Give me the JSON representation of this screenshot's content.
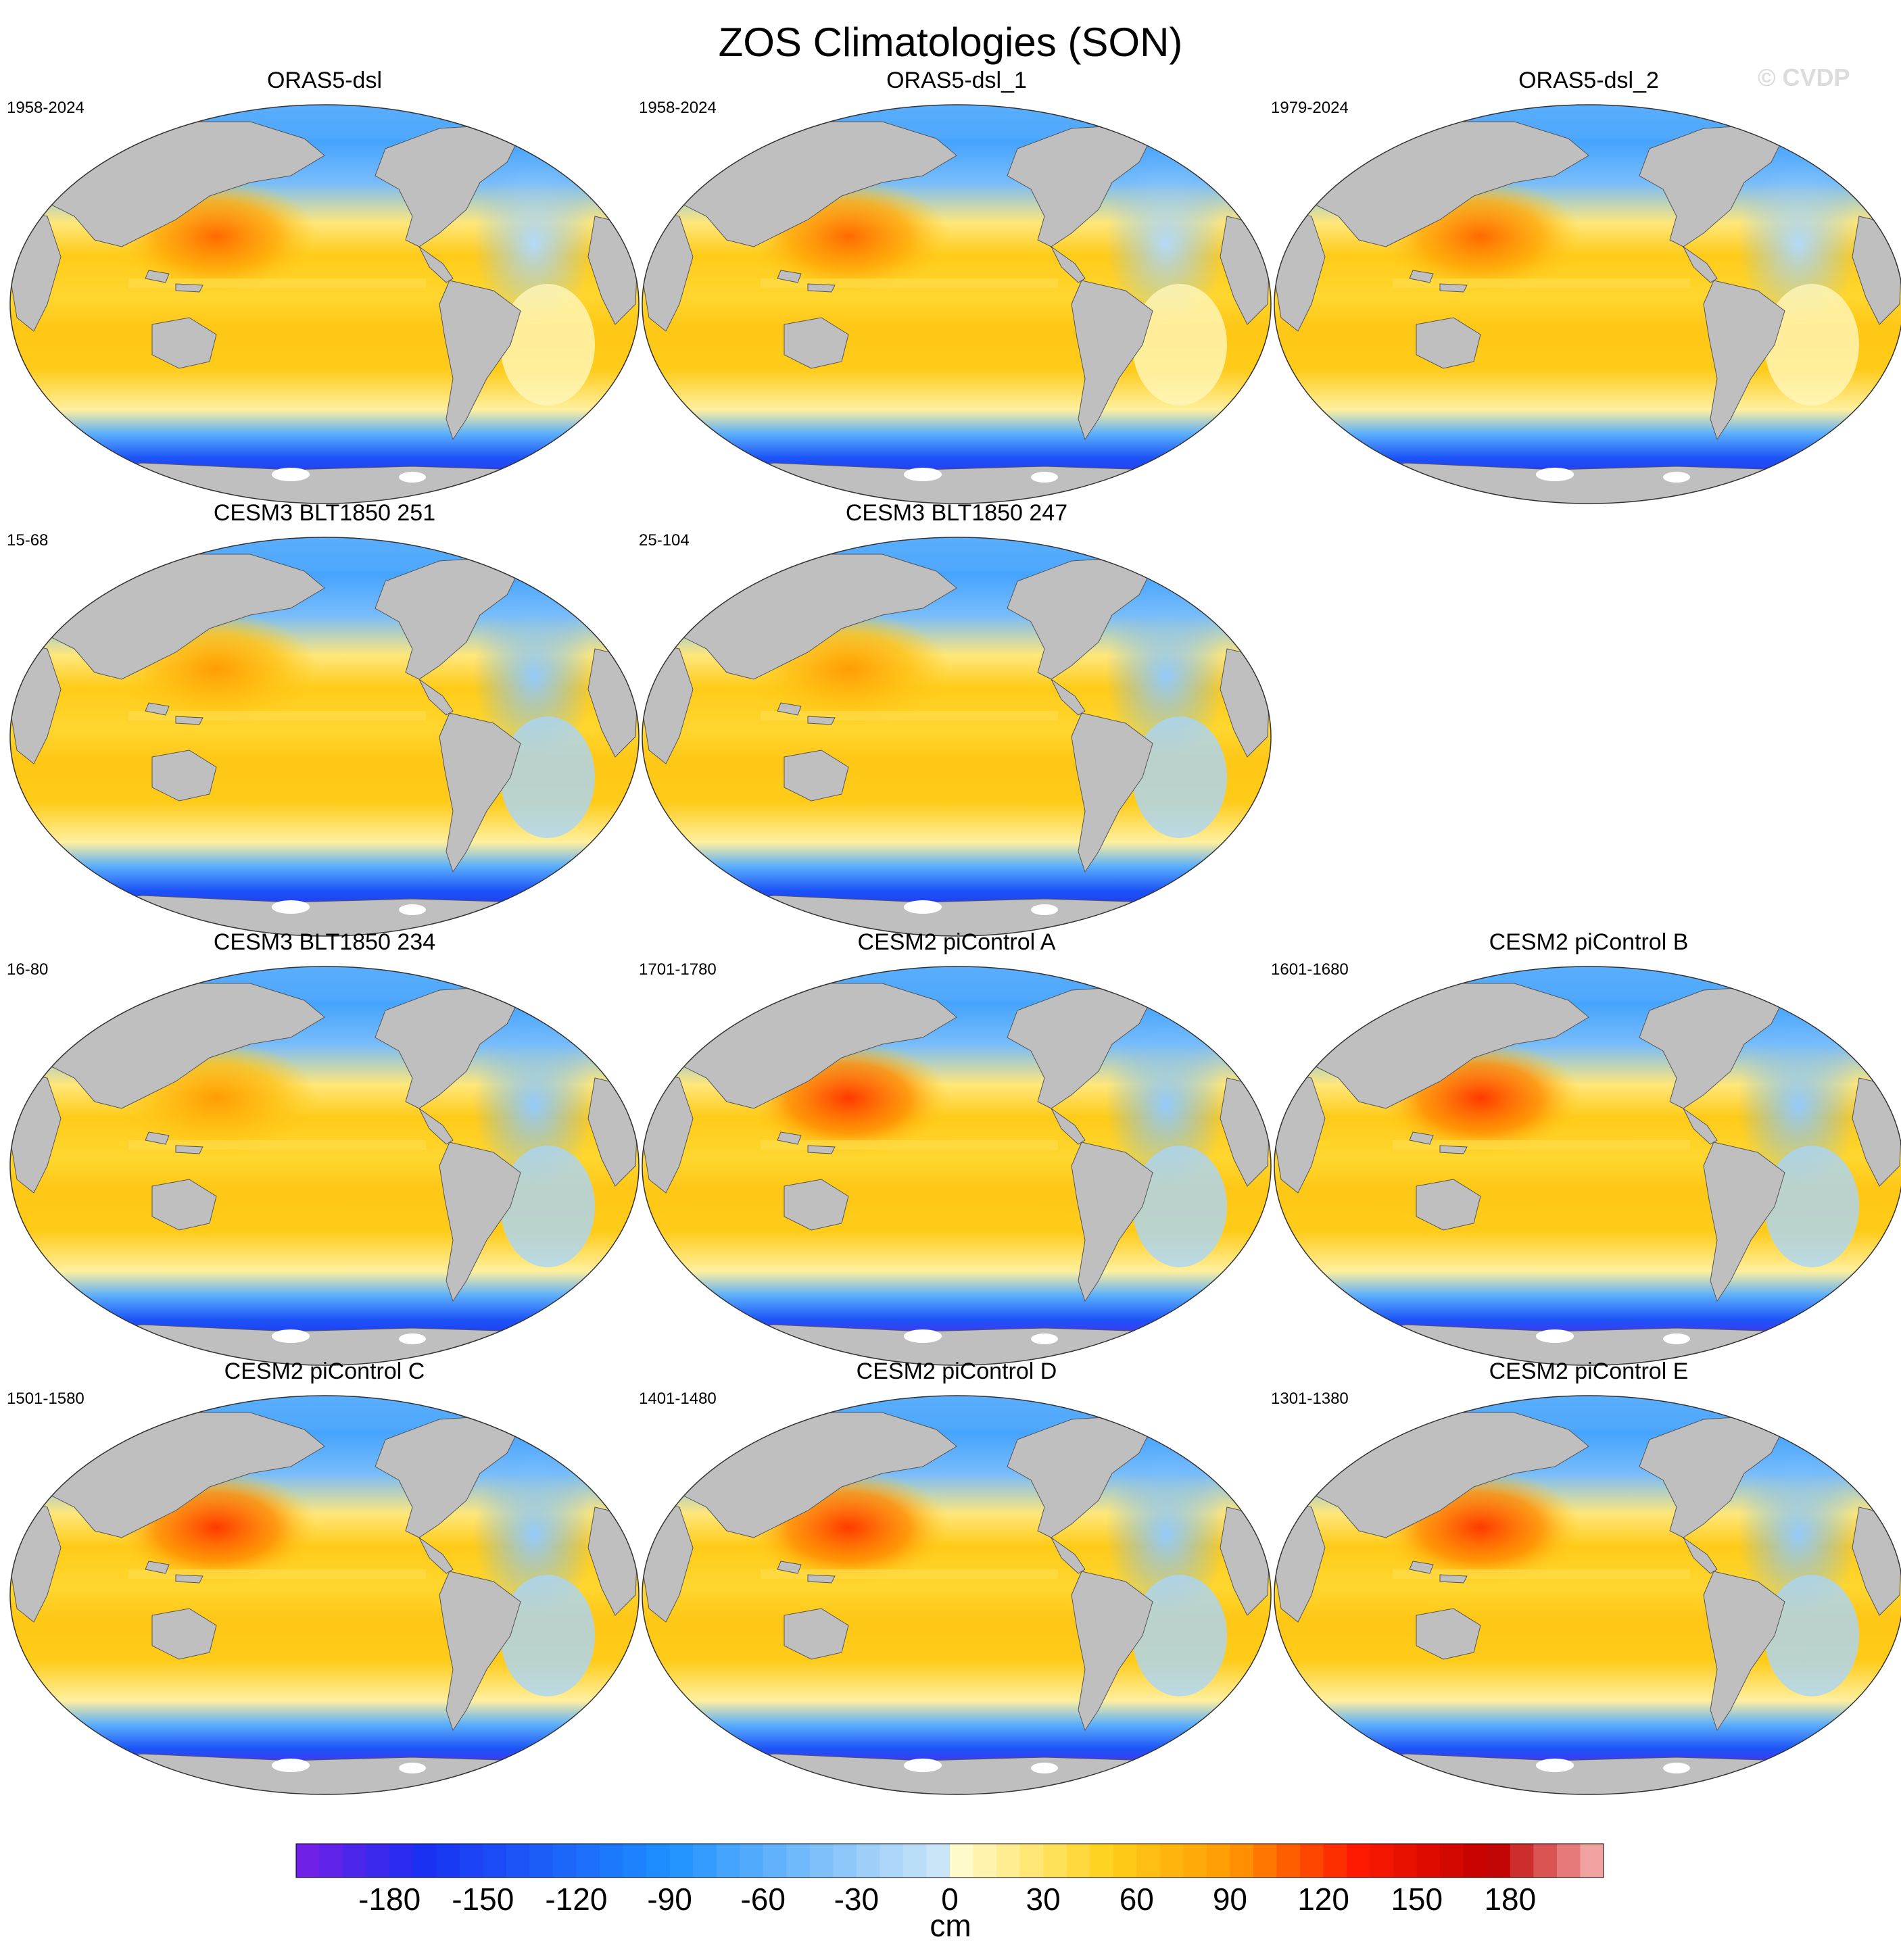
{
  "figure": {
    "title": "ZOS Climatologies (SON)",
    "watermark": "© CVDP"
  },
  "panels": [
    {
      "title": "ORAS5-dsl",
      "years": "1958-2024",
      "type": "obs"
    },
    {
      "title": "ORAS5-dsl_1",
      "years": "1958-2024",
      "type": "obs"
    },
    {
      "title": "ORAS5-dsl_2",
      "years": "1979-2024",
      "type": "obs"
    },
    {
      "title": "CESM3 BLT1850 251",
      "years": "15-68",
      "type": "cesm3"
    },
    {
      "title": "CESM3 BLT1850 247",
      "years": "25-104",
      "type": "cesm3"
    },
    {
      "title": "CESM3 BLT1850 234",
      "years": "16-80",
      "type": "cesm3"
    },
    {
      "title": "CESM2 piControl A",
      "years": "1701-1780",
      "type": "cesm2"
    },
    {
      "title": "CESM2 piControl B",
      "years": "1601-1680",
      "type": "cesm2"
    },
    {
      "title": "CESM2 piControl C",
      "years": "1501-1580",
      "type": "cesm2"
    },
    {
      "title": "CESM2 piControl D",
      "years": "1401-1480",
      "type": "cesm2"
    },
    {
      "title": "CESM2 piControl E",
      "years": "1301-1380",
      "type": "cesm2"
    }
  ],
  "colorbar": {
    "label": "cm",
    "min": -210,
    "max": 210,
    "step": 7.5,
    "ticks": [
      -180,
      -150,
      -120,
      -90,
      -60,
      -30,
      0,
      30,
      60,
      90,
      120,
      150,
      180
    ],
    "tick_labels": [
      "-180",
      "-150",
      "-120",
      "-90",
      "-60",
      "-30",
      "0",
      "30",
      "60",
      "90",
      "120",
      "150",
      "180"
    ],
    "colors": {
      "neg_deep": "#7a1ee6",
      "neg_blue": "#1a2ef2",
      "neg_mid": "#1e90ff",
      "neg_light": "#cde7f7",
      "pos_light": "#fffbd0",
      "pos_yellow": "#ffd21c",
      "pos_orange": "#ff9a00",
      "pos_red": "#ff1a00",
      "pos_dark": "#c00000",
      "pos_pink": "#f8b4b4"
    }
  },
  "map": {
    "land_color": "#bfbfbf",
    "ice_color": "#ffffff"
  }
}
